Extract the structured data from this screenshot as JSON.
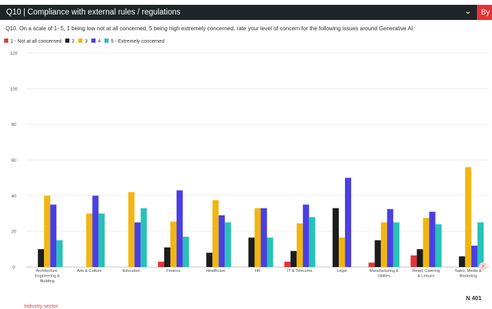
{
  "header": {
    "title": "Q10 | Compliance with external rules / regulations",
    "dropdown_icon": "chevron-down-icon",
    "by_label": "By"
  },
  "question": "Q10. On a scale of 1- 5, 1 being low not at all concerned, 5 being high extremely concerned, rate your level of concern for the following issues around Generative AI:",
  "sample_size": "N 401",
  "next_icon": "chevron-right-icon",
  "chart_data": {
    "type": "bar",
    "xlabel": "Industry sector",
    "ylabel": "",
    "ylim": [
      0,
      120
    ],
    "yticks": [
      0,
      20,
      40,
      60,
      80,
      100,
      120
    ],
    "grid": true,
    "legend_position": "top-left",
    "categories": [
      [
        "Architecture,",
        "Engineering &",
        "Building"
      ],
      [
        "Arts & Culture"
      ],
      [
        "Education"
      ],
      [
        "Finance"
      ],
      [
        "Healthcare"
      ],
      [
        "HR"
      ],
      [
        "IT & Telecoms"
      ],
      [
        "Legal"
      ],
      [
        "Manufacturing &",
        "Utilities"
      ],
      [
        "Retail, Catering",
        "& Leisure"
      ],
      [
        "Sales, Media &",
        "Marketing"
      ]
    ],
    "series": [
      {
        "name": "1 - Not at all concerned",
        "color": "#e63336",
        "values": [
          0,
          0,
          0,
          3,
          0,
          0,
          3,
          0,
          2.5,
          6.5,
          0
        ]
      },
      {
        "name": "2",
        "color": "#1b1d1f",
        "values": [
          10,
          0,
          0,
          11,
          8,
          16.5,
          9,
          33,
          15,
          10,
          6
        ]
      },
      {
        "name": "3",
        "color": "#f2b511",
        "values": [
          40,
          30,
          42,
          25.5,
          37.5,
          33,
          24.5,
          16.5,
          25,
          27.5,
          56
        ]
      },
      {
        "name": "4",
        "color": "#4a3fe2",
        "values": [
          35,
          40,
          25,
          43,
          29,
          33,
          35,
          50,
          32.5,
          31,
          12
        ]
      },
      {
        "name": "5 - Extremely concerned",
        "color": "#27c2b8",
        "values": [
          15,
          30,
          33,
          17,
          25,
          16.5,
          28,
          0,
          25,
          24,
          25
        ]
      }
    ]
  }
}
